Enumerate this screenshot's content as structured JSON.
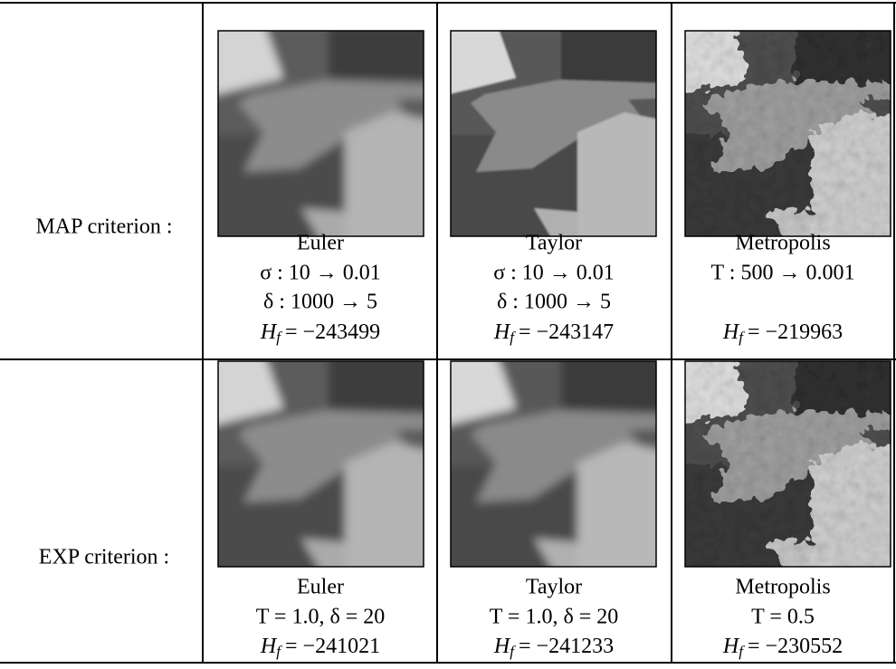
{
  "rows": [
    {
      "label": "MAP criterion :",
      "cells": [
        {
          "method": "Euler",
          "params": [
            "σ : 10 → 0.01",
            "δ : 1000 → 5"
          ],
          "energy": {
            "symbol": "H",
            "subscript": "f",
            "value": "= −243499"
          }
        },
        {
          "method": "Taylor",
          "params": [
            "σ : 10 → 0.01",
            "δ : 1000 → 5"
          ],
          "energy": {
            "symbol": "H",
            "subscript": "f",
            "value": "= −243147"
          }
        },
        {
          "method": "Metropolis",
          "params": [
            "T : 500 → 0.001"
          ],
          "energy": {
            "symbol": "H",
            "subscript": "f",
            "value": "= −219963"
          }
        }
      ]
    },
    {
      "label": "EXP criterion :",
      "cells": [
        {
          "method": "Euler",
          "params": [
            "T = 1.0, δ = 20"
          ],
          "energy": {
            "symbol": "H",
            "subscript": "f",
            "value": "= −241021"
          }
        },
        {
          "method": "Taylor",
          "params": [
            "T = 1.0, δ = 20"
          ],
          "energy": {
            "symbol": "H",
            "subscript": "f",
            "value": "= −241233"
          }
        },
        {
          "method": "Metropolis",
          "params": [
            "T = 0.5"
          ],
          "energy": {
            "symbol": "H",
            "subscript": "f",
            "value": "= −230552"
          }
        }
      ]
    }
  ]
}
